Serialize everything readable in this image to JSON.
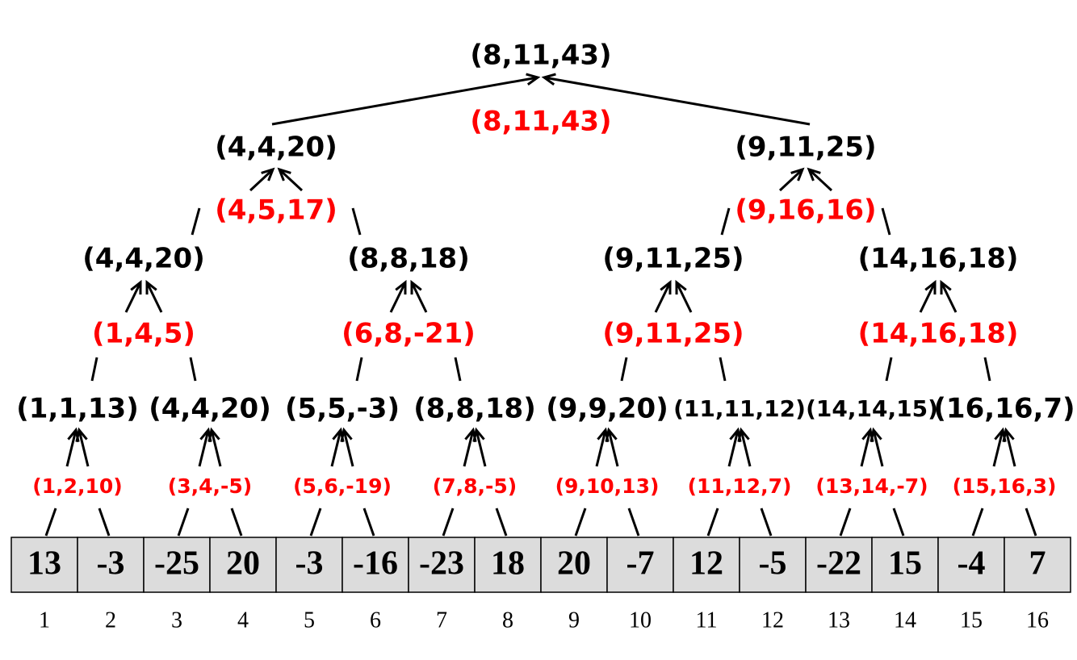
{
  "colors": {
    "node": "#000000",
    "merge": "#ff0000",
    "cell_fill": "#dcdcdc",
    "edge": "#000000"
  },
  "array": {
    "values": [
      "13",
      "-3",
      "-25",
      "20",
      "-3",
      "-16",
      "-23",
      "18",
      "20",
      "-7",
      "12",
      "-5",
      "-22",
      "15",
      "-4",
      "7"
    ],
    "indices": [
      "1",
      "2",
      "3",
      "4",
      "5",
      "6",
      "7",
      "8",
      "9",
      "10",
      "11",
      "12",
      "13",
      "14",
      "15",
      "16"
    ]
  },
  "tree": {
    "root": {
      "label": "(8,11,43)",
      "merge": "(8,11,43)"
    },
    "level1": [
      {
        "label": "(4,4,20)",
        "merge": "(4,5,17)"
      },
      {
        "label": "(9,11,25)",
        "merge": "(9,16,16)"
      }
    ],
    "level2": [
      {
        "label": "(4,4,20)",
        "merge": "(1,4,5)"
      },
      {
        "label": "(8,8,18)",
        "merge": "(6,8,-21)"
      },
      {
        "label": "(9,11,25)",
        "merge": "(9,11,25)"
      },
      {
        "label": "(14,16,18)",
        "merge": "(14,16,18)"
      }
    ],
    "level3": [
      {
        "label": "(1,1,13)",
        "merge": "(1,2,10)"
      },
      {
        "label": "(4,4,20)",
        "merge": "(3,4,-5)"
      },
      {
        "label": "(5,5,-3)",
        "merge": "(5,6,-19)"
      },
      {
        "label": "(8,8,18)",
        "merge": "(7,8,-5)"
      },
      {
        "label": "(9,9,20)",
        "merge": "(9,10,13)"
      },
      {
        "label": "(11,11,12)",
        "merge": "(11,12,7)"
      },
      {
        "label": "(14,14,15)",
        "merge": "(13,14,-7)"
      },
      {
        "label": "(16,16,7)",
        "merge": "(15,16,3)"
      }
    ]
  }
}
